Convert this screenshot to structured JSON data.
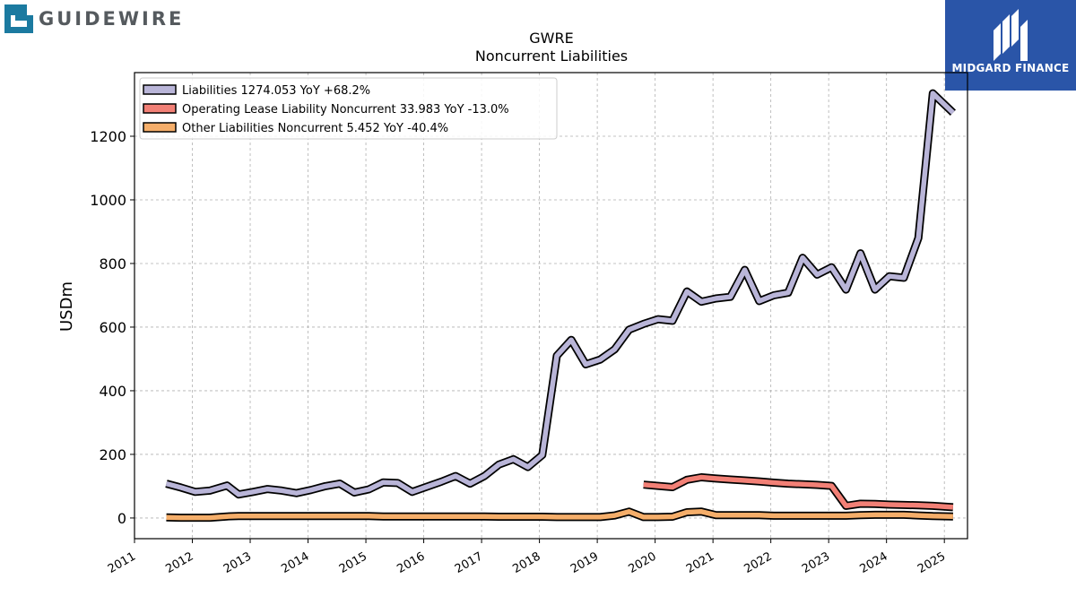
{
  "header": {
    "logo_text": "GUIDEWIRE",
    "badge_text": "MIDGARD FINANCE"
  },
  "chart_data": {
    "type": "line",
    "title": "GWRE",
    "subtitle": "Noncurrent  Liabilities",
    "ylabel": "USDm",
    "xlabel": "",
    "xlim": [
      2011.0,
      2025.4
    ],
    "ylim": [
      -65,
      1400
    ],
    "yticks": [
      0,
      200,
      400,
      600,
      800,
      1000,
      1200
    ],
    "xticks": [
      "2011",
      "2012",
      "2013",
      "2014",
      "2015",
      "2016",
      "2017",
      "2018",
      "2019",
      "2020",
      "2021",
      "2022",
      "2023",
      "2024",
      "2025"
    ],
    "grid": true,
    "legend_position": "top-left",
    "series": [
      {
        "name": "Liabilities",
        "legend": "Liabilities  1274.053 YoY +68.2%",
        "color": "#b9b5d8",
        "x": [
          2011.55,
          2011.8,
          2012.05,
          2012.3,
          2012.6,
          2012.8,
          2013.05,
          2013.3,
          2013.55,
          2013.8,
          2014.05,
          2014.3,
          2014.55,
          2014.8,
          2015.05,
          2015.3,
          2015.55,
          2015.8,
          2016.05,
          2016.3,
          2016.55,
          2016.8,
          2017.05,
          2017.3,
          2017.55,
          2017.8,
          2018.05,
          2018.3,
          2018.55,
          2018.8,
          2019.05,
          2019.3,
          2019.55,
          2019.8,
          2020.05,
          2020.3,
          2020.55,
          2020.8,
          2021.05,
          2021.3,
          2021.55,
          2021.8,
          2022.05,
          2022.3,
          2022.55,
          2022.8,
          2023.05,
          2023.3,
          2023.55,
          2023.8,
          2024.05,
          2024.3,
          2024.55,
          2024.8,
          2025.15
        ],
        "y": [
          108,
          96,
          82,
          86,
          102,
          74,
          82,
          91,
          86,
          78,
          88,
          100,
          108,
          80,
          90,
          112,
          110,
          82,
          98,
          114,
          132,
          108,
          132,
          168,
          185,
          160,
          198,
          510,
          560,
          483,
          498,
          530,
          592,
          610,
          625,
          620,
          712,
          680,
          690,
          695,
          780,
          682,
          700,
          708,
          818,
          765,
          788,
          718,
          832,
          718,
          760,
          755,
          880,
          1335,
          1274
        ]
      },
      {
        "name": "Operating Lease Liability Noncurrent",
        "legend": "Operating Lease Liability Noncurrent  33.983 YoY -13.0%",
        "color": "#f28076",
        "x": [
          2019.8,
          2020.05,
          2020.3,
          2020.55,
          2020.8,
          2021.05,
          2021.3,
          2021.55,
          2021.8,
          2022.05,
          2022.3,
          2022.55,
          2022.8,
          2023.05,
          2023.3,
          2023.55,
          2023.8,
          2024.05,
          2024.3,
          2024.55,
          2024.8,
          2025.15
        ],
        "y": [
          105,
          101,
          97,
          120,
          128,
          124,
          121,
          118,
          115,
          111,
          108,
          106,
          104,
          101,
          38,
          45,
          44,
          42,
          41,
          40,
          38,
          34
        ]
      },
      {
        "name": "Other Liabilities Noncurrent",
        "legend": "Other Liabilities Noncurrent  5.452 YoY -40.4%",
        "color": "#f5ae6a",
        "x": [
          2011.55,
          2011.8,
          2012.05,
          2012.3,
          2012.6,
          2012.8,
          2013.05,
          2013.3,
          2013.55,
          2013.8,
          2014.05,
          2014.3,
          2014.55,
          2014.8,
          2015.05,
          2015.3,
          2015.55,
          2015.8,
          2016.05,
          2016.3,
          2016.55,
          2016.8,
          2017.05,
          2017.3,
          2017.55,
          2017.8,
          2018.05,
          2018.3,
          2018.55,
          2018.8,
          2019.05,
          2019.3,
          2019.55,
          2019.8,
          2020.05,
          2020.3,
          2020.55,
          2020.8,
          2021.05,
          2021.3,
          2021.55,
          2021.8,
          2022.05,
          2022.3,
          2022.55,
          2022.8,
          2023.05,
          2023.3,
          2023.55,
          2023.8,
          2024.05,
          2024.3,
          2024.55,
          2024.8,
          2025.15
        ],
        "y": [
          2,
          1,
          1,
          1,
          5,
          6,
          6,
          6,
          6,
          6,
          6,
          6,
          6,
          6,
          6,
          5,
          5,
          5,
          5,
          5,
          5,
          5,
          5,
          4,
          4,
          4,
          4,
          3,
          3,
          3,
          3,
          8,
          20,
          3,
          3,
          4,
          18,
          20,
          9,
          9,
          9,
          9,
          7,
          7,
          7,
          7,
          7,
          7,
          9,
          10,
          10,
          10,
          8,
          6,
          5
        ]
      }
    ]
  }
}
